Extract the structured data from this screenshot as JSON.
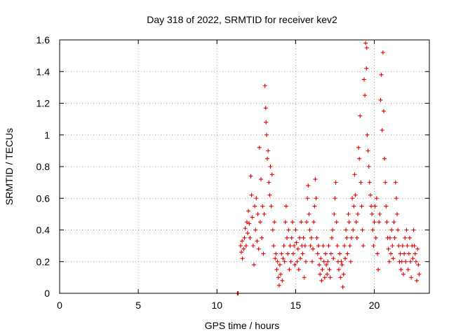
{
  "chart_data": {
    "type": "scatter",
    "title": "Day 318 of 2022, SRMTID for receiver kev2",
    "xlabel": "GPS time / hours",
    "ylabel": "SRMTID / TECUs",
    "xlim": [
      0,
      23.5
    ],
    "ylim": [
      0,
      1.6
    ],
    "x_ticks": [
      0,
      5,
      10,
      15,
      20
    ],
    "x_tick_labels": [
      "0",
      "5",
      "10",
      "15",
      "20"
    ],
    "y_ticks": [
      0,
      0.2,
      0.4,
      0.6,
      0.8,
      1.0,
      1.2,
      1.4,
      1.6
    ],
    "y_tick_labels": [
      "0",
      "0.2",
      "0.4",
      "0.6",
      "0.8",
      "1",
      "1.2",
      "1.4",
      "1.6"
    ],
    "grid": true,
    "marker": "+",
    "color": "#e00000",
    "series": [
      {
        "name": "SRMTID",
        "points": [
          [
            11.3,
            0.0
          ],
          [
            11.35,
            0.0
          ],
          [
            11.5,
            0.3
          ],
          [
            11.55,
            0.26
          ],
          [
            11.6,
            0.33
          ],
          [
            11.62,
            0.22
          ],
          [
            11.7,
            0.28
          ],
          [
            11.75,
            0.35
          ],
          [
            11.8,
            0.41
          ],
          [
            11.85,
            0.3
          ],
          [
            11.9,
            0.45
          ],
          [
            11.95,
            0.38
          ],
          [
            12.0,
            0.52
          ],
          [
            12.05,
            0.44
          ],
          [
            12.1,
            0.35
          ],
          [
            12.15,
            0.74
          ],
          [
            12.2,
            0.62
          ],
          [
            12.25,
            0.48
          ],
          [
            12.3,
            0.3
          ],
          [
            12.35,
            0.18
          ],
          [
            12.4,
            0.55
          ],
          [
            12.45,
            0.4
          ],
          [
            12.5,
            0.6
          ],
          [
            12.55,
            0.33
          ],
          [
            12.6,
            0.5
          ],
          [
            12.65,
            0.28
          ],
          [
            12.7,
            0.92
          ],
          [
            12.75,
            0.45
          ],
          [
            12.8,
            0.72
          ],
          [
            12.85,
            0.35
          ],
          [
            12.9,
            0.55
          ],
          [
            12.95,
            0.25
          ],
          [
            13.0,
            0.5
          ],
          [
            13.05,
            1.31
          ],
          [
            13.1,
            1.17
          ],
          [
            13.12,
            1.08
          ],
          [
            13.15,
            1.0
          ],
          [
            13.2,
            0.85
          ],
          [
            13.25,
            0.9
          ],
          [
            13.3,
            0.7
          ],
          [
            13.35,
            0.62
          ],
          [
            13.4,
            0.8
          ],
          [
            13.45,
            0.55
          ],
          [
            13.5,
            0.75
          ],
          [
            13.55,
            0.4
          ],
          [
            13.6,
            0.3
          ],
          [
            13.65,
            0.45
          ],
          [
            13.7,
            0.22
          ],
          [
            13.75,
            0.25
          ],
          [
            13.8,
            0.15
          ],
          [
            13.85,
            0.2
          ],
          [
            13.9,
            0.1
          ],
          [
            13.95,
            0.05
          ],
          [
            14.0,
            0.18
          ],
          [
            14.05,
            0.12
          ],
          [
            14.1,
            0.25
          ],
          [
            14.15,
            0.08
          ],
          [
            14.2,
            0.22
          ],
          [
            14.25,
            0.3
          ],
          [
            14.3,
            0.2
          ],
          [
            14.35,
            0.45
          ],
          [
            14.4,
            0.55
          ],
          [
            14.45,
            0.35
          ],
          [
            14.5,
            0.25
          ],
          [
            14.55,
            0.4
          ],
          [
            14.6,
            0.15
          ],
          [
            14.65,
            0.3
          ],
          [
            14.7,
            0.2
          ],
          [
            14.75,
            0.35
          ],
          [
            14.8,
            0.45
          ],
          [
            14.85,
            0.25
          ],
          [
            14.9,
            0.3
          ],
          [
            14.95,
            0.18
          ],
          [
            15.0,
            0.4
          ],
          [
            15.05,
            0.32
          ],
          [
            15.1,
            0.2
          ],
          [
            15.15,
            0.28
          ],
          [
            15.2,
            0.15
          ],
          [
            15.25,
            0.35
          ],
          [
            15.3,
            0.22
          ],
          [
            15.35,
            0.45
          ],
          [
            15.4,
            0.3
          ],
          [
            15.45,
            0.25
          ],
          [
            15.5,
            0.35
          ],
          [
            15.55,
            0.1
          ],
          [
            15.6,
            0.3
          ],
          [
            15.65,
            0.2
          ],
          [
            15.7,
            0.45
          ],
          [
            15.75,
            0.6
          ],
          [
            15.8,
            0.68
          ],
          [
            15.85,
            0.5
          ],
          [
            15.9,
            0.4
          ],
          [
            15.95,
            0.3
          ],
          [
            16.0,
            0.35
          ],
          [
            16.05,
            0.2
          ],
          [
            16.1,
            0.28
          ],
          [
            16.15,
            0.45
          ],
          [
            16.2,
            0.55
          ],
          [
            16.25,
            0.72
          ],
          [
            16.3,
            0.6
          ],
          [
            16.35,
            0.35
          ],
          [
            16.4,
            0.25
          ],
          [
            16.45,
            0.3
          ],
          [
            16.5,
            0.18
          ],
          [
            16.55,
            0.12
          ],
          [
            16.6,
            0.22
          ],
          [
            16.65,
            0.08
          ],
          [
            16.7,
            0.15
          ],
          [
            16.75,
            0.3
          ],
          [
            16.8,
            0.2
          ],
          [
            16.85,
            0.1
          ],
          [
            16.9,
            0.25
          ],
          [
            16.95,
            0.18
          ],
          [
            17.0,
            0.12
          ],
          [
            17.05,
            0.2
          ],
          [
            17.1,
            0.3
          ],
          [
            17.15,
            0.15
          ],
          [
            17.2,
            0.1
          ],
          [
            17.25,
            0.25
          ],
          [
            17.3,
            0.35
          ],
          [
            17.35,
            0.4
          ],
          [
            17.4,
            0.22
          ],
          [
            17.45,
            0.5
          ],
          [
            17.5,
            0.6
          ],
          [
            17.55,
            0.7
          ],
          [
            17.6,
            0.45
          ],
          [
            17.65,
            0.3
          ],
          [
            17.7,
            0.2
          ],
          [
            17.75,
            0.15
          ],
          [
            17.8,
            0.25
          ],
          [
            17.85,
            0.1
          ],
          [
            17.9,
            0.2
          ],
          [
            17.95,
            0.18
          ],
          [
            18.0,
            0.04
          ],
          [
            18.05,
            0.12
          ],
          [
            18.1,
            0.3
          ],
          [
            18.15,
            0.22
          ],
          [
            18.2,
            0.4
          ],
          [
            18.25,
            0.35
          ],
          [
            18.3,
            0.25
          ],
          [
            18.35,
            0.5
          ],
          [
            18.4,
            0.45
          ],
          [
            18.45,
            0.3
          ],
          [
            18.5,
            0.2
          ],
          [
            18.55,
            0.35
          ],
          [
            18.6,
            0.6
          ],
          [
            18.65,
            0.4
          ],
          [
            18.7,
            0.55
          ],
          [
            18.75,
            0.75
          ],
          [
            18.8,
            0.62
          ],
          [
            18.85,
            0.45
          ],
          [
            18.9,
            0.35
          ],
          [
            18.95,
            0.5
          ],
          [
            19.0,
            0.92
          ],
          [
            19.05,
            0.85
          ],
          [
            19.1,
            1.12
          ],
          [
            19.15,
            0.7
          ],
          [
            19.2,
            0.55
          ],
          [
            19.25,
            0.4
          ],
          [
            19.3,
            0.3
          ],
          [
            19.35,
            1.35
          ],
          [
            19.4,
            1.25
          ],
          [
            19.45,
            1.58
          ],
          [
            19.5,
            1.42
          ],
          [
            19.52,
            1.55
          ],
          [
            19.55,
            1.0
          ],
          [
            19.6,
            0.9
          ],
          [
            19.65,
            0.8
          ],
          [
            19.7,
            0.7
          ],
          [
            19.75,
            0.62
          ],
          [
            19.8,
            0.55
          ],
          [
            19.85,
            0.5
          ],
          [
            19.9,
            0.4
          ],
          [
            19.95,
            0.3
          ],
          [
            20.0,
            0.45
          ],
          [
            20.05,
            0.55
          ],
          [
            20.1,
            0.35
          ],
          [
            20.15,
            0.6
          ],
          [
            20.2,
            0.25
          ],
          [
            20.25,
            0.15
          ],
          [
            20.3,
            0.45
          ],
          [
            20.35,
            0.5
          ],
          [
            20.4,
            1.22
          ],
          [
            20.45,
            1.38
          ],
          [
            20.5,
            1.03
          ],
          [
            20.55,
            1.52
          ],
          [
            20.6,
            1.15
          ],
          [
            20.65,
            0.85
          ],
          [
            20.7,
            0.7
          ],
          [
            20.75,
            0.55
          ],
          [
            20.8,
            0.45
          ],
          [
            20.85,
            0.35
          ],
          [
            20.9,
            0.28
          ],
          [
            20.95,
            0.2
          ],
          [
            21.0,
            0.35
          ],
          [
            21.05,
            0.25
          ],
          [
            21.1,
            0.4
          ],
          [
            21.15,
            0.3
          ],
          [
            21.2,
            0.22
          ],
          [
            21.25,
            0.45
          ],
          [
            21.3,
            0.35
          ],
          [
            21.35,
            0.7
          ],
          [
            21.4,
            0.6
          ],
          [
            21.45,
            0.5
          ],
          [
            21.5,
            0.4
          ],
          [
            21.55,
            0.3
          ],
          [
            21.6,
            0.2
          ],
          [
            21.65,
            0.25
          ],
          [
            21.7,
            0.15
          ],
          [
            21.75,
            0.2
          ],
          [
            21.8,
            0.3
          ],
          [
            21.85,
            0.12
          ],
          [
            21.9,
            0.25
          ],
          [
            21.95,
            0.35
          ],
          [
            22.0,
            0.2
          ],
          [
            22.05,
            0.4
          ],
          [
            22.1,
            0.3
          ],
          [
            22.15,
            0.15
          ],
          [
            22.2,
            0.25
          ],
          [
            22.25,
            0.35
          ],
          [
            22.3,
            0.2
          ],
          [
            22.35,
            0.1
          ],
          [
            22.4,
            0.3
          ],
          [
            22.45,
            0.22
          ],
          [
            22.5,
            0.4
          ],
          [
            22.55,
            0.3
          ],
          [
            22.6,
            0.25
          ],
          [
            22.65,
            0.2
          ],
          [
            22.7,
            0.08
          ],
          [
            22.75,
            0.28
          ],
          [
            22.8,
            0.18
          ],
          [
            22.85,
            0.12
          ]
        ]
      }
    ]
  }
}
